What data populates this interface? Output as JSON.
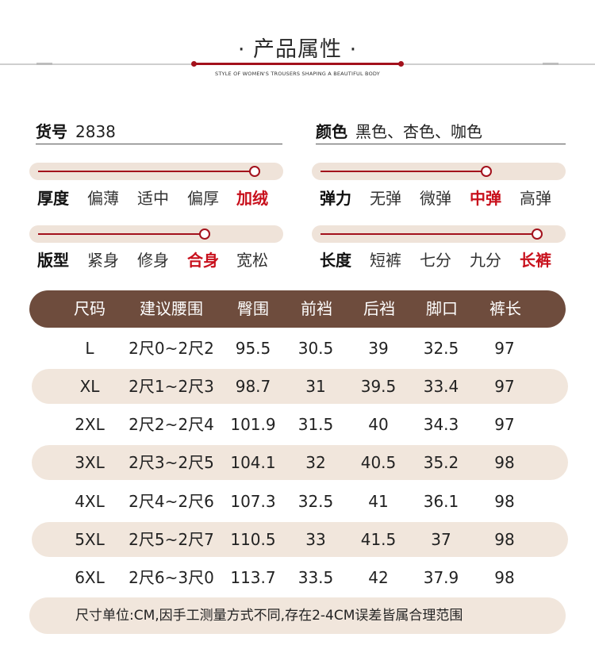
{
  "header": {
    "title": "· 产品属性 ·",
    "subtitle": "STYLE OF WOMEN'S TROUSERS SHAPING A BEAUTIFUL BODY"
  },
  "info": {
    "item_no_label": "货号",
    "item_no_value": "2838",
    "color_label": "颜色",
    "color_value": "黑色、杏色、咖色"
  },
  "attributes": {
    "thickness": {
      "label": "厚度",
      "options": [
        "偏薄",
        "适中",
        "偏厚",
        "加绒"
      ],
      "selected": "加绒"
    },
    "elasticity": {
      "label": "弹力",
      "options": [
        "无弹",
        "微弹",
        "中弹",
        "高弹"
      ],
      "selected": "中弹"
    },
    "fit": {
      "label": "版型",
      "options": [
        "紧身",
        "修身",
        "合身",
        "宽松"
      ],
      "selected": "合身"
    },
    "length": {
      "label": "长度",
      "options": [
        "短裤",
        "七分",
        "九分",
        "长裤"
      ],
      "selected": "长裤"
    }
  },
  "size_table": {
    "headers": [
      "尺码",
      "建议腰围",
      "臀围",
      "前裆",
      "后裆",
      "脚口",
      "裤长"
    ],
    "rows": [
      [
        "L",
        "2尺0~2尺2",
        "95.5",
        "30.5",
        "39",
        "32.5",
        "97"
      ],
      [
        "XL",
        "2尺1~2尺3",
        "98.7",
        "31",
        "39.5",
        "33.4",
        "97"
      ],
      [
        "2XL",
        "2尺2~2尺4",
        "101.9",
        "31.5",
        "40",
        "34.3",
        "97"
      ],
      [
        "3XL",
        "2尺3~2尺5",
        "104.1",
        "32",
        "40.5",
        "35.2",
        "98"
      ],
      [
        "4XL",
        "2尺4~2尺6",
        "107.3",
        "32.5",
        "41",
        "36.1",
        "98"
      ],
      [
        "5XL",
        "2尺5~2尺7",
        "110.5",
        "33",
        "41.5",
        "37",
        "98"
      ],
      [
        "6XL",
        "2尺6~3尺0",
        "113.7",
        "33.5",
        "42",
        "37.9",
        "98"
      ]
    ]
  },
  "footer": {
    "note": "尺寸单位:CM,因手工测量方式不同,存在2-4CM误差皆属合理范围"
  },
  "colors": {
    "accent_red": "#a3111c",
    "selected_red": "#c8101c",
    "header_brown": "#6e4c3d",
    "row_beige": "#f1e6dc"
  }
}
